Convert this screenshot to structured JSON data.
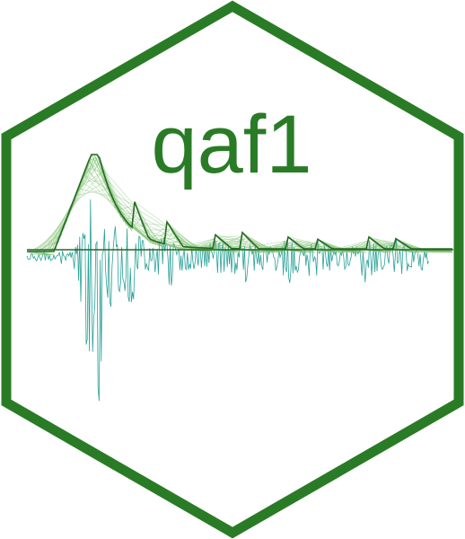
{
  "logo": {
    "title": "qaf1",
    "colors": {
      "border": "#2a7b26",
      "title": "#2a7b26",
      "signal": "#2aa198",
      "envelope_dark": "#256a22",
      "envelope_light": "#7cbf6e",
      "background": "#ffffff"
    }
  }
}
